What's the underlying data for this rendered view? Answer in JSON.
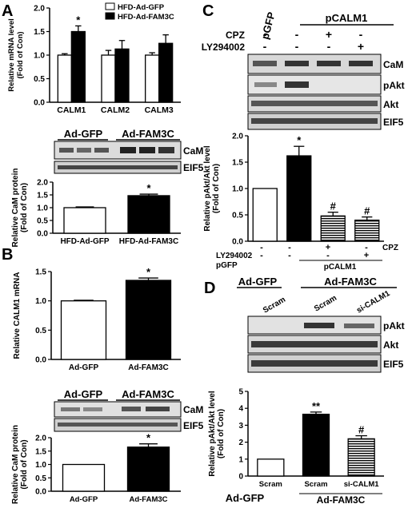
{
  "panels": {
    "A": {
      "label": "A",
      "mrna_chart": {
        "type": "bar",
        "ylabel": "Relative mRNA level\n(Fold of Con)",
        "ylim": [
          0,
          2.0
        ],
        "yticks": [
          "0.0",
          "0.5",
          "1.0",
          "1.5",
          "2.0"
        ],
        "categories": [
          "CALM1",
          "CALM2",
          "CALM3"
        ],
        "series": [
          {
            "name": "HFD-Ad-GFP",
            "values": [
              1.0,
              1.0,
              1.0
            ],
            "errors": [
              0.03,
              0.1,
              0.05
            ],
            "fill": "#ffffff"
          },
          {
            "name": "HFD-Ad-FAM3C",
            "values": [
              1.5,
              1.13,
              1.25
            ],
            "errors": [
              0.12,
              0.18,
              0.18
            ],
            "fill": "#000000"
          }
        ],
        "significance": [
          "*",
          "",
          ""
        ]
      },
      "blot": {
        "groups": [
          "Ad-GFP",
          "Ad-FAM3C"
        ],
        "rows": [
          "CaM",
          "EIF5"
        ]
      },
      "protein_chart": {
        "type": "bar",
        "ylabel": "Relative CaM protein\n(Fold of Con)",
        "ylim": [
          0,
          2.0
        ],
        "yticks": [
          "0.0",
          "0.5",
          "1.0",
          "1.5",
          "2.0"
        ],
        "categories": [
          "HFD-Ad-GFP",
          "HFD-Ad-FAM3C"
        ],
        "values": [
          1.0,
          1.47
        ],
        "errors": [
          0.03,
          0.06
        ],
        "fills": [
          "#ffffff",
          "#000000"
        ],
        "significance": [
          "",
          "*"
        ]
      }
    },
    "B": {
      "label": "B",
      "mrna_chart": {
        "type": "bar",
        "ylabel": "Relative CALM1 mRNA",
        "ylim": [
          0,
          1.5
        ],
        "yticks": [
          "0.0",
          "0.5",
          "1.0",
          "1.5"
        ],
        "categories": [
          "Ad-GFP",
          "Ad-FAM3C"
        ],
        "values": [
          1.0,
          1.35
        ],
        "errors": [
          0.01,
          0.04
        ],
        "fills": [
          "#ffffff",
          "#000000"
        ],
        "significance": [
          "",
          "*"
        ]
      },
      "blot": {
        "groups": [
          "Ad-GFP",
          "Ad-FAM3C"
        ],
        "rows": [
          "CaM",
          "EIF5"
        ]
      },
      "protein_chart": {
        "type": "bar",
        "ylabel": "Relative CaM protein\n(Fold of Con)",
        "ylim": [
          0,
          2.0
        ],
        "yticks": [
          "0.0",
          "0.5",
          "1.0",
          "1.5",
          "2.0"
        ],
        "categories": [
          "Ad-GFP",
          "Ad-FAM3C"
        ],
        "values": [
          1.0,
          1.65
        ],
        "errors": [
          0.0,
          0.12
        ],
        "fills": [
          "#ffffff",
          "#000000"
        ],
        "significance": [
          "",
          "*"
        ]
      }
    },
    "C": {
      "label": "C",
      "treatments": {
        "groups": [
          "pGFP",
          "pCALM1"
        ],
        "rows": [
          {
            "name": "CPZ",
            "marks": [
              "-",
              "-",
              "+",
              "-"
            ]
          },
          {
            "name": "LY294002",
            "marks": [
              "-",
              "-",
              "-",
              "+"
            ]
          }
        ]
      },
      "blot": {
        "rows": [
          "CaM",
          "pAkt",
          "Akt",
          "EIF5"
        ]
      },
      "chart": {
        "type": "bar",
        "ylabel": "Relative pAkt/Akt level\n(Fold of Con)",
        "ylim": [
          0,
          2.0
        ],
        "yticks": [
          "0.0",
          "0.5",
          "1.0",
          "1.5",
          "2.0"
        ],
        "values": [
          1.0,
          1.62,
          0.48,
          0.4
        ],
        "errors": [
          0.0,
          0.18,
          0.07,
          0.06
        ],
        "fills": [
          "white",
          "black",
          "hstripe",
          "hstripe"
        ],
        "significance": [
          "",
          "*",
          "#",
          "#"
        ]
      }
    },
    "D": {
      "label": "D",
      "groups": [
        "Ad-GFP",
        "Ad-FAM3C"
      ],
      "lanes": [
        "Scram",
        "Scram",
        "si-CALM1"
      ],
      "blot": {
        "rows": [
          "pAkt",
          "Akt",
          "EIF5"
        ]
      },
      "chart": {
        "type": "bar",
        "ylabel": "Relative pAkt/Akt level\n(Fold of Con)",
        "ylim": [
          0,
          5
        ],
        "yticks": [
          "0",
          "1",
          "2",
          "3",
          "4",
          "5"
        ],
        "categories": [
          "Scram",
          "Scram",
          "si-CALM1"
        ],
        "values": [
          1.0,
          3.65,
          2.2
        ],
        "errors": [
          0.0,
          0.13,
          0.18
        ],
        "fills": [
          "white",
          "black",
          "hstripe"
        ],
        "significance": [
          "",
          "**",
          "#"
        ]
      }
    }
  }
}
